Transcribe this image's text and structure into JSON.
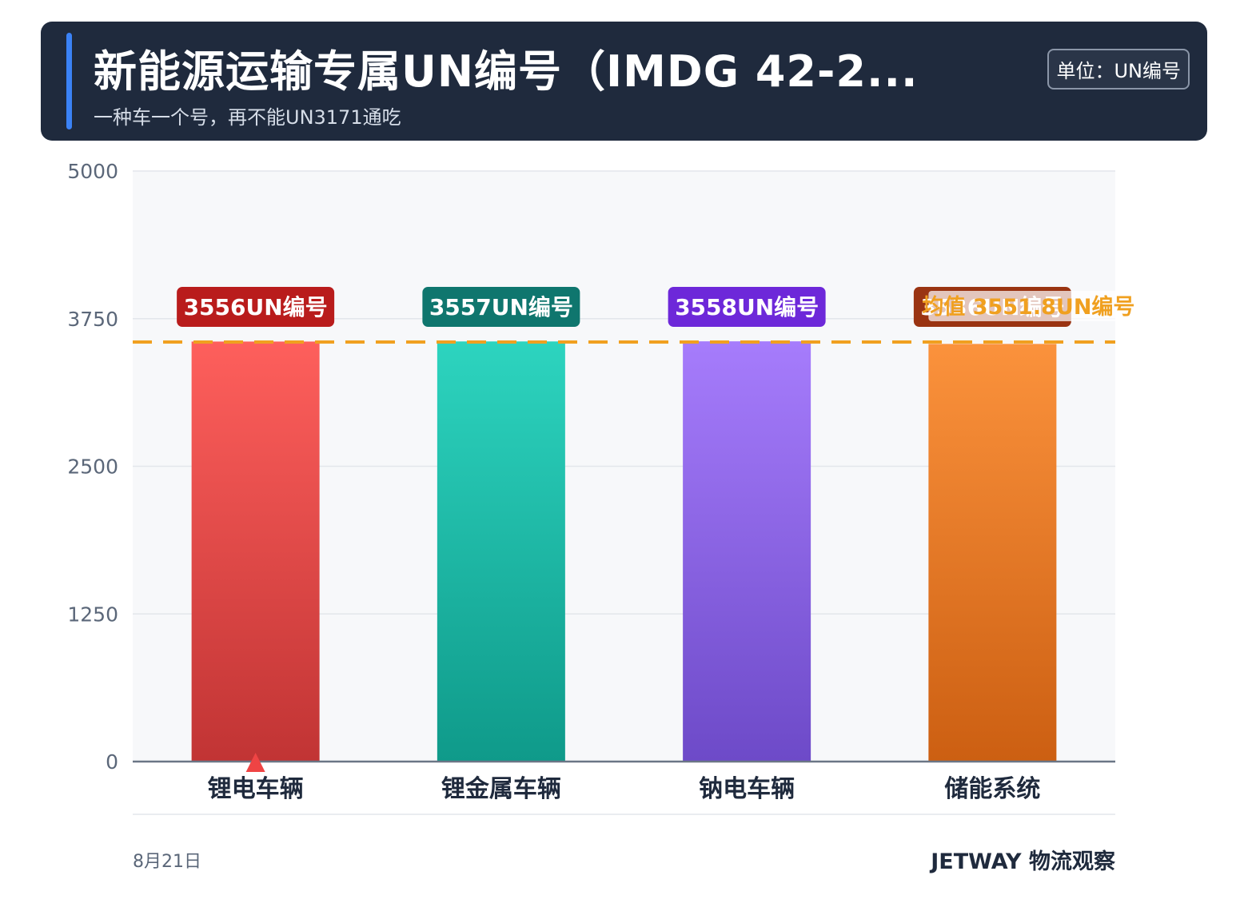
{
  "header": {
    "title": "新能源运输专属UN编号（IMDG 42-2...",
    "subtitle": "一种车一个号，再不能UN3171通吃",
    "unit_badge": "单位：UN编号"
  },
  "footer": {
    "date": "8月21日",
    "brand": "JETWAY 物流观察"
  },
  "chart_data": {
    "type": "bar",
    "categories": [
      "锂电车辆",
      "锂金属车辆",
      "钠电车辆",
      "储能系统"
    ],
    "values": [
      3556,
      3557,
      3558,
      3536
    ],
    "value_labels": [
      "3556UN编号",
      "3557UN编号",
      "3558UN编号",
      "3536UN编号"
    ],
    "ylim": [
      0,
      5000
    ],
    "yticks": [
      0,
      1250,
      2500,
      3750,
      5000
    ],
    "grid": true,
    "average": {
      "value": 3551.8,
      "label": "均值 3551.8UN编号",
      "color": "#f0a020"
    },
    "bar_colors": [
      {
        "top": "#fe5f5c",
        "bottom": "#c13434",
        "label_bg": "#b91c1c"
      },
      {
        "top": "#2dd4bf",
        "bottom": "#0f9a8a",
        "label_bg": "#0f766e"
      },
      {
        "top": "#a67cfc",
        "bottom": "#6d4ac8",
        "label_bg": "#6d28d9"
      },
      {
        "top": "#fb923c",
        "bottom": "#cc5f12",
        "label_bg": "#9a3412"
      }
    ],
    "marker": {
      "category_index": 0,
      "shape": "triangle",
      "color": "#ef4444"
    }
  }
}
